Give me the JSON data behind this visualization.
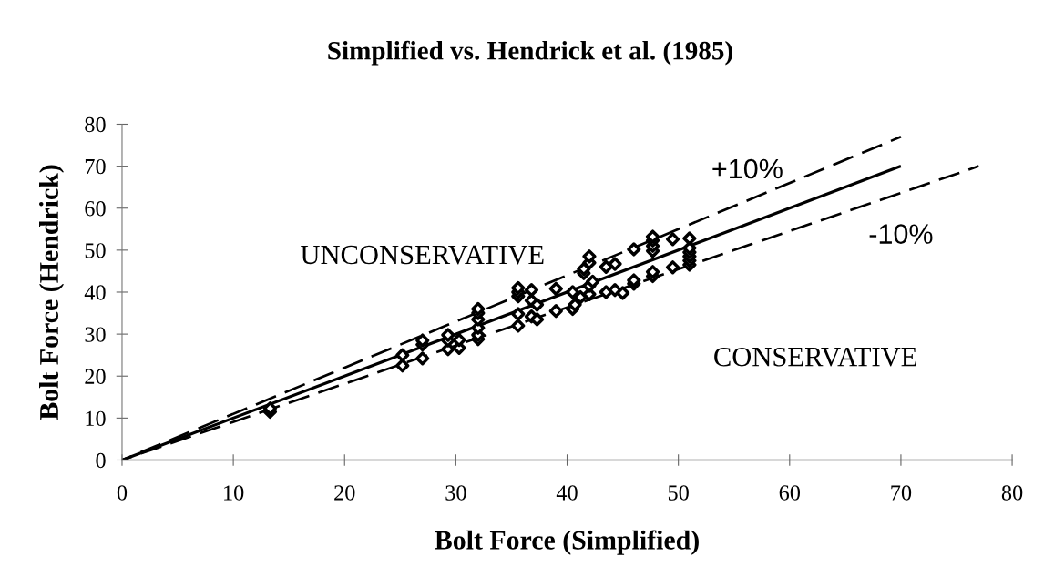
{
  "chart_data": {
    "type": "scatter",
    "title": "Simplified vs. Hendrick et al. (1985)",
    "xlabel": "Bolt Force (Simplified)",
    "ylabel": "Bolt Force (Hendrick)",
    "xlim": [
      0,
      80
    ],
    "ylim": [
      0,
      80
    ],
    "xticks": [
      0,
      10,
      20,
      30,
      40,
      50,
      60,
      70,
      80
    ],
    "yticks": [
      0,
      10,
      20,
      30,
      40,
      50,
      60,
      70,
      80
    ],
    "grid": false,
    "series": [
      {
        "color": "#000000",
        "marker": "diamond",
        "x": [
          13.3,
          13.3,
          25.2,
          25.2,
          27.0,
          27.0,
          27.0,
          29.3,
          29.3,
          29.3,
          30.3,
          30.3,
          32.0,
          32.0,
          32.0,
          32.0,
          32.0,
          32.0,
          35.6,
          35.6,
          35.6,
          35.6,
          35.6,
          36.8,
          36.8,
          36.8,
          37.3,
          37.3,
          39.0,
          39.0,
          40.5,
          40.5,
          40.7,
          41.2,
          41.5,
          41.5,
          42.0,
          42.0,
          42.0,
          42.0,
          42.3,
          43.5,
          43.5,
          44.3,
          44.3,
          45.0,
          46.0,
          46.0,
          46.0,
          47.7,
          47.7,
          47.7,
          47.7,
          47.7,
          47.7,
          49.5,
          49.5,
          51.0,
          51.0,
          51.0,
          51.0,
          51.0,
          51.0
        ],
        "values": [
          11.5,
          12.3,
          22.5,
          25.0,
          24.2,
          27.5,
          28.5,
          26.4,
          28.5,
          29.8,
          26.7,
          28.6,
          28.8,
          29.8,
          31.5,
          33.5,
          35.0,
          36.0,
          32.0,
          34.8,
          39.0,
          40.0,
          41.0,
          34.2,
          38.0,
          40.5,
          33.5,
          37.0,
          35.5,
          40.8,
          36.0,
          40.0,
          37.0,
          38.8,
          44.5,
          45.5,
          39.5,
          41.5,
          47.0,
          48.5,
          42.5,
          40.0,
          46.0,
          46.7,
          40.5,
          39.8,
          42.0,
          42.8,
          50.2,
          43.8,
          44.8,
          49.8,
          51.0,
          52.3,
          53.2,
          45.9,
          52.6,
          46.5,
          47.5,
          48.5,
          49.5,
          50.5,
          52.8
        ]
      },
      {
        "type": "line",
        "color": "#000000",
        "marker": "none",
        "line_style": "solid",
        "x": [
          0,
          70
        ],
        "values": [
          0,
          70
        ]
      },
      {
        "type": "line",
        "color": "#000000",
        "marker": "none",
        "line_style": "dashed",
        "x": [
          0,
          70
        ],
        "values": [
          0,
          77
        ]
      },
      {
        "type": "line",
        "color": "#000000",
        "marker": "none",
        "line_style": "dashed",
        "x": [
          0,
          77
        ],
        "values": [
          0,
          70
        ]
      }
    ],
    "annotations": [
      "+10%",
      "-10%",
      "UNCONSERVATIVE",
      "CONSERVATIVE"
    ]
  }
}
